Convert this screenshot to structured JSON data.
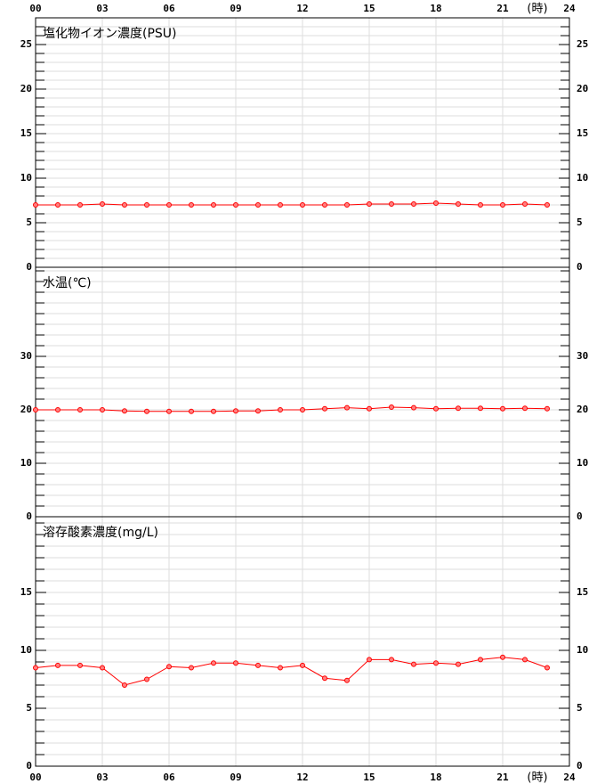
{
  "chart_data": [
    {
      "type": "line",
      "title": "塩化物イオン濃度(PSU)",
      "x_unit": "(時)",
      "xaxis": "top",
      "x": [
        0,
        1,
        2,
        3,
        4,
        5,
        6,
        7,
        8,
        9,
        10,
        11,
        12,
        13,
        14,
        15,
        16,
        17,
        18,
        19,
        20,
        21,
        22,
        23
      ],
      "xlim": [
        0,
        24
      ],
      "xticks": [
        {
          "value": 0,
          "label": "00"
        },
        {
          "value": 3,
          "label": "03"
        },
        {
          "value": 6,
          "label": "06"
        },
        {
          "value": 9,
          "label": "09"
        },
        12,
        15,
        18,
        21,
        24
      ],
      "ylim": [
        0,
        28
      ],
      "yticks": [
        0,
        5,
        10,
        15,
        20,
        25
      ],
      "minor_step": 1,
      "grid": true,
      "series": [
        {
          "color": "#ff0000",
          "values": [
            7.0,
            7.0,
            7.0,
            7.1,
            7.0,
            7.0,
            7.0,
            7.0,
            7.0,
            7.0,
            7.0,
            7.0,
            7.0,
            7.0,
            7.0,
            7.1,
            7.1,
            7.1,
            7.2,
            7.1,
            7.0,
            7.0,
            7.1,
            7.0
          ]
        }
      ]
    },
    {
      "type": "line",
      "title": "水温(℃)",
      "xaxis": "none",
      "x": [
        0,
        1,
        2,
        3,
        4,
        5,
        6,
        7,
        8,
        9,
        10,
        11,
        12,
        13,
        14,
        15,
        16,
        17,
        18,
        19,
        20,
        21,
        22,
        23
      ],
      "xlim": [
        0,
        24
      ],
      "xticks": [
        {
          "value": 0,
          "label": "00"
        },
        {
          "value": 3,
          "label": "03"
        },
        {
          "value": 6,
          "label": "06"
        },
        {
          "value": 9,
          "label": "09"
        },
        12,
        15,
        18,
        21,
        24
      ],
      "ylim": [
        0,
        46.67
      ],
      "yticks": [
        0,
        10,
        20,
        30
      ],
      "minor_step": 2,
      "grid": true,
      "series": [
        {
          "color": "#ff0000",
          "values": [
            20.0,
            20.0,
            20.0,
            20.0,
            19.8,
            19.7,
            19.7,
            19.7,
            19.7,
            19.8,
            19.8,
            20.0,
            20.0,
            20.2,
            20.4,
            20.2,
            20.5,
            20.4,
            20.2,
            20.3,
            20.3,
            20.2,
            20.3,
            20.2
          ]
        }
      ]
    },
    {
      "type": "line",
      "title": "溶存酸素濃度(mg/L)",
      "x_unit": "(時)",
      "xaxis": "bottom",
      "x": [
        0,
        1,
        2,
        3,
        4,
        5,
        6,
        7,
        8,
        9,
        10,
        11,
        12,
        13,
        14,
        15,
        16,
        17,
        18,
        19,
        20,
        21,
        22,
        23
      ],
      "xlim": [
        0,
        24
      ],
      "xticks": [
        {
          "value": 0,
          "label": "00"
        },
        {
          "value": 3,
          "label": "03"
        },
        {
          "value": 6,
          "label": "06"
        },
        {
          "value": 9,
          "label": "09"
        },
        12,
        15,
        18,
        21,
        24
      ],
      "ylim": [
        0,
        21.54
      ],
      "yticks": [
        0,
        5,
        10,
        15
      ],
      "minor_step": 1,
      "grid": true,
      "series": [
        {
          "color": "#ff0000",
          "values": [
            8.5,
            8.7,
            8.7,
            8.5,
            7.0,
            7.5,
            8.6,
            8.5,
            8.9,
            8.9,
            8.7,
            8.5,
            8.7,
            7.6,
            7.4,
            9.2,
            9.2,
            8.8,
            8.9,
            8.8,
            9.2,
            9.4,
            9.2,
            8.5
          ]
        }
      ]
    }
  ]
}
